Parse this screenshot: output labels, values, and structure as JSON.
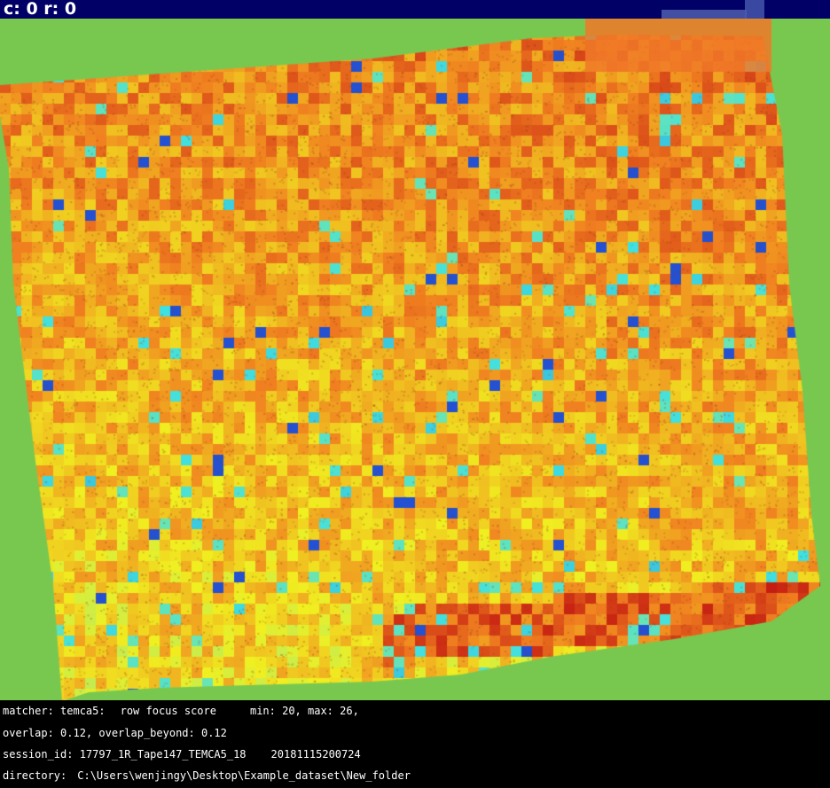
{
  "header": {
    "coord_label": "c: 0 r: 0"
  },
  "info": {
    "matcher": "matcher: temca5:",
    "metric": "row focus score",
    "range": "min: 20, max: 26,",
    "overlap": "overlap: 0.12, overlap_beyond: 0.12",
    "session_id": "session_id: 17797_1R_Tape147_TEMCA5_18",
    "timestamp": "20181115200724",
    "directory_label": "directory:",
    "directory_path": "C:\\Users\\wenjingy\\Desktop\\Example_dataset\\New_folder"
  },
  "colors": {
    "background": "#78c850",
    "header_bar": "#000066",
    "panel": "#000000",
    "text": "#ffffff",
    "scale_low": "#1f3fd0",
    "scale_mid_low": "#40e0e0",
    "scale_mid": "#f0f020",
    "scale_mid_high": "#f08020",
    "scale_high": "#c01010"
  },
  "heatmap": {
    "metric_min": 20,
    "metric_max": 26
  }
}
